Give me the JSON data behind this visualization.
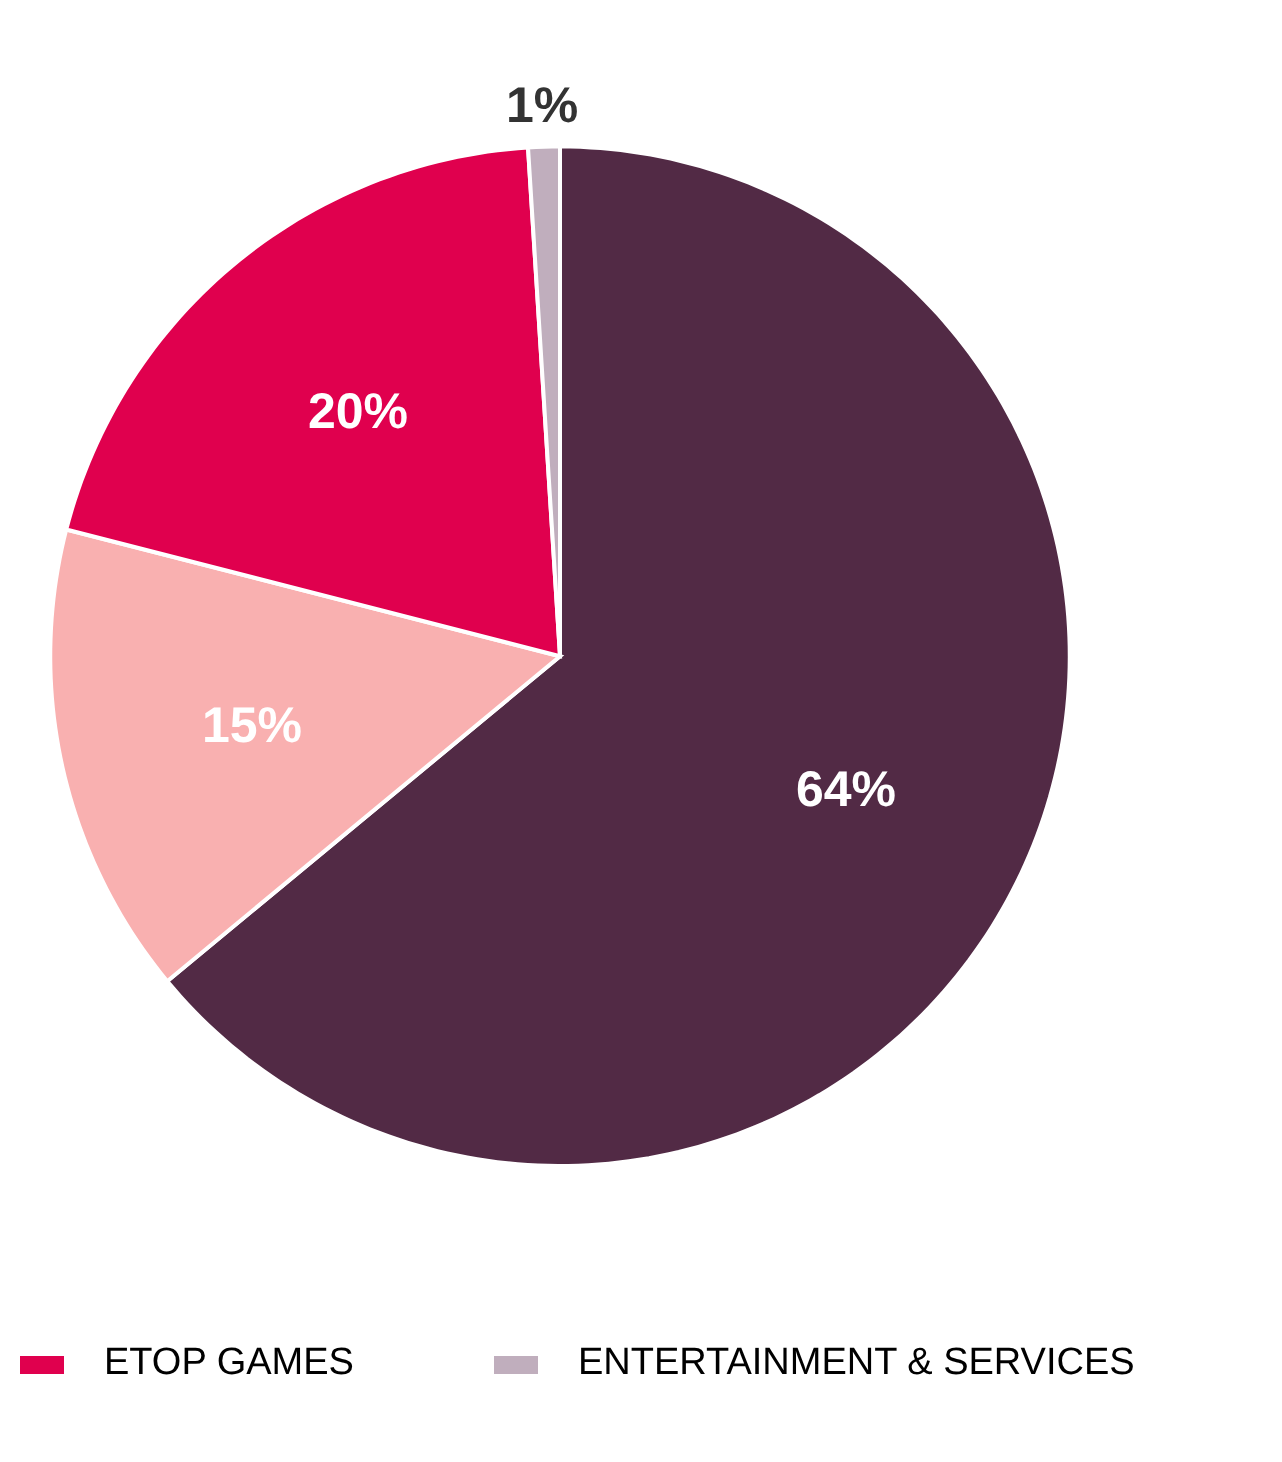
{
  "chart_data": {
    "type": "pie",
    "categories": [
      null,
      null,
      "ETOP GAMES",
      "ENTERTAINMENT & SERVICES"
    ],
    "values": [
      64,
      15,
      20,
      1
    ],
    "value_labels": [
      "64%",
      "15%",
      "20%",
      "1%"
    ],
    "colors": [
      "#522a45",
      "#f9b0b0",
      "#e0004e",
      "#c0aebd"
    ],
    "legend": "bottom"
  }
}
